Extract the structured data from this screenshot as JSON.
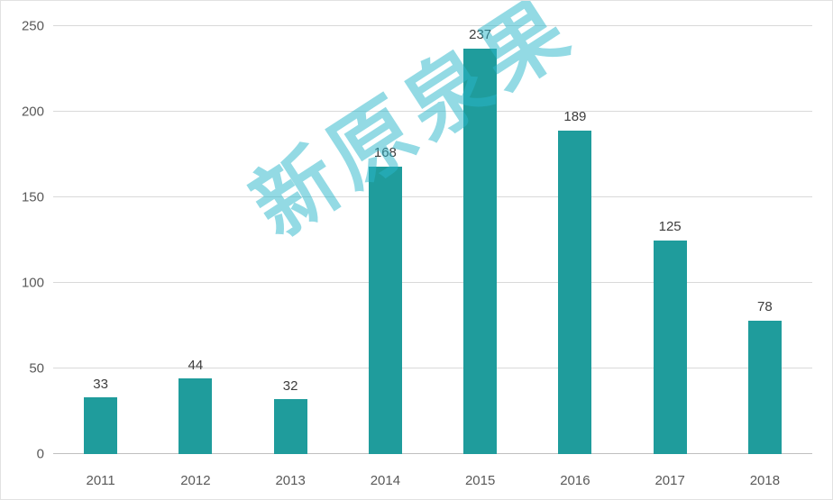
{
  "chart_data": {
    "type": "bar",
    "title": "",
    "xlabel": "",
    "ylabel": "",
    "categories": [
      "2011",
      "2012",
      "2013",
      "2014",
      "2015",
      "2016",
      "2017",
      "2018"
    ],
    "values": [
      33,
      44,
      32,
      168,
      237,
      189,
      125,
      78
    ],
    "ylim": [
      0,
      250
    ],
    "ytick_step": 50,
    "ytick_labels": [
      "0",
      "50",
      "100",
      "150",
      "200",
      "250"
    ],
    "grid": true,
    "legend": "none",
    "bar_color": "#1f9c9c",
    "value_label_color": "#3d3d3d",
    "axis_label_color": "#595959",
    "gridline_color": "#d9d9d9"
  },
  "watermark": {
    "text": "新原泉果",
    "color": "#29b6ca"
  }
}
